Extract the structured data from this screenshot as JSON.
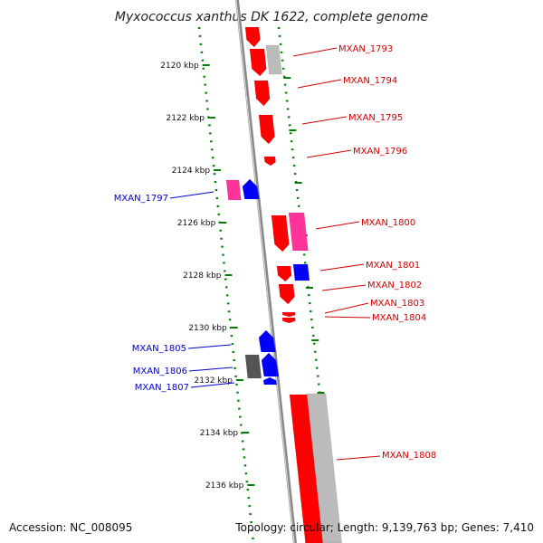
{
  "title": "Myxococcus xanthus DK 1622, complete genome",
  "footer": {
    "accession": "Accession: NC_008095",
    "topology": "Topology: circular; Length: 9,139,763 bp; Genes: 7,410"
  },
  "colors": {
    "forward": "#ff0000",
    "reverse": "#0000ff",
    "pink": "#ff3399",
    "gray": "#bbbbbb",
    "darkgray": "#555555",
    "ruler": "#008000",
    "backbone": "#888888"
  },
  "ticks": [
    {
      "label": "2120 kbp",
      "kbp": 2120
    },
    {
      "label": "2122 kbp",
      "kbp": 2122
    },
    {
      "label": "2124 kbp",
      "kbp": 2124
    },
    {
      "label": "2126 kbp",
      "kbp": 2126
    },
    {
      "label": "2128 kbp",
      "kbp": 2128
    },
    {
      "label": "2130 kbp",
      "kbp": 2130
    },
    {
      "label": "2132 kbp",
      "kbp": 2132
    },
    {
      "label": "2134 kbp",
      "kbp": 2134
    },
    {
      "label": "2136 kbp",
      "kbp": 2136
    }
  ],
  "genes": [
    {
      "name": "MXAN_1793",
      "strand": "forward"
    },
    {
      "name": "MXAN_1794",
      "strand": "forward"
    },
    {
      "name": "MXAN_1795",
      "strand": "forward"
    },
    {
      "name": "MXAN_1796",
      "strand": "forward"
    },
    {
      "name": "MXAN_1797",
      "strand": "reverse"
    },
    {
      "name": "MXAN_1800",
      "strand": "forward"
    },
    {
      "name": "MXAN_1801",
      "strand": "forward"
    },
    {
      "name": "MXAN_1802",
      "strand": "forward"
    },
    {
      "name": "MXAN_1803",
      "strand": "forward"
    },
    {
      "name": "MXAN_1804",
      "strand": "forward"
    },
    {
      "name": "MXAN_1805",
      "strand": "reverse"
    },
    {
      "name": "MXAN_1806",
      "strand": "reverse"
    },
    {
      "name": "MXAN_1807",
      "strand": "reverse"
    },
    {
      "name": "MXAN_1808",
      "strand": "forward"
    }
  ]
}
